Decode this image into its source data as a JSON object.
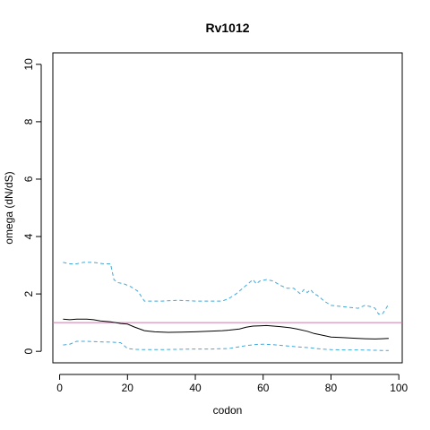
{
  "chart_data": {
    "type": "line",
    "title": "Rv1012",
    "xlabel": "codon",
    "ylabel": "omega (dN/dS)",
    "xlim": [
      -2,
      101
    ],
    "ylim": [
      -0.4,
      10.4
    ],
    "xticks": [
      0,
      20,
      40,
      60,
      80,
      100
    ],
    "yticks": [
      0,
      2,
      4,
      6,
      8,
      10
    ],
    "reference_line": {
      "y": 1,
      "color": "#cc79a7"
    },
    "colors": {
      "omega": "#000000",
      "ci": "#3fa9dc"
    },
    "series": [
      {
        "style": "solid",
        "x": [
          1,
          3,
          5,
          8,
          10,
          12,
          15,
          18,
          20,
          22,
          25,
          28,
          32,
          36,
          40,
          44,
          48,
          50,
          53,
          55,
          57,
          59,
          61,
          63,
          65,
          68,
          70,
          73,
          75,
          78,
          80,
          83,
          86,
          90,
          93,
          95,
          97
        ],
        "y": [
          1.12,
          1.1,
          1.12,
          1.12,
          1.1,
          1.06,
          1.03,
          0.97,
          0.95,
          0.85,
          0.72,
          0.68,
          0.66,
          0.67,
          0.68,
          0.7,
          0.72,
          0.74,
          0.78,
          0.84,
          0.88,
          0.89,
          0.9,
          0.88,
          0.86,
          0.82,
          0.78,
          0.7,
          0.62,
          0.55,
          0.5,
          0.48,
          0.46,
          0.44,
          0.43,
          0.44,
          0.45
        ]
      },
      {
        "style": "dashed",
        "x": [
          1,
          3,
          5,
          7,
          10,
          13,
          15,
          16,
          17,
          19,
          21,
          23,
          25,
          30,
          35,
          40,
          45,
          48,
          50,
          52,
          54,
          56,
          57,
          58,
          59,
          61,
          63,
          65,
          67,
          69,
          70,
          71,
          72,
          73,
          74,
          75,
          76,
          78,
          80,
          84,
          88,
          90,
          92,
          93,
          94,
          95,
          96,
          97
        ],
        "y": [
          3.1,
          3.05,
          3.05,
          3.1,
          3.1,
          3.05,
          3.05,
          2.5,
          2.4,
          2.35,
          2.25,
          2.1,
          1.75,
          1.75,
          1.78,
          1.75,
          1.75,
          1.75,
          1.85,
          2.0,
          2.2,
          2.4,
          2.5,
          2.35,
          2.45,
          2.5,
          2.45,
          2.3,
          2.2,
          2.2,
          2.1,
          2.0,
          2.15,
          2.05,
          2.15,
          2.0,
          1.95,
          1.75,
          1.6,
          1.55,
          1.5,
          1.6,
          1.55,
          1.5,
          1.3,
          1.28,
          1.45,
          1.65
        ]
      },
      {
        "style": "dashed",
        "x": [
          1,
          3,
          5,
          8,
          12,
          15,
          18,
          20,
          22,
          25,
          30,
          35,
          40,
          45,
          50,
          55,
          58,
          60,
          63,
          66,
          70,
          74,
          77,
          80,
          84,
          88,
          92,
          95,
          97
        ],
        "y": [
          0.22,
          0.25,
          0.35,
          0.35,
          0.33,
          0.32,
          0.3,
          0.1,
          0.07,
          0.06,
          0.06,
          0.07,
          0.08,
          0.08,
          0.1,
          0.2,
          0.24,
          0.25,
          0.23,
          0.2,
          0.16,
          0.12,
          0.08,
          0.06,
          0.05,
          0.05,
          0.04,
          0.03,
          0.03
        ]
      }
    ]
  }
}
